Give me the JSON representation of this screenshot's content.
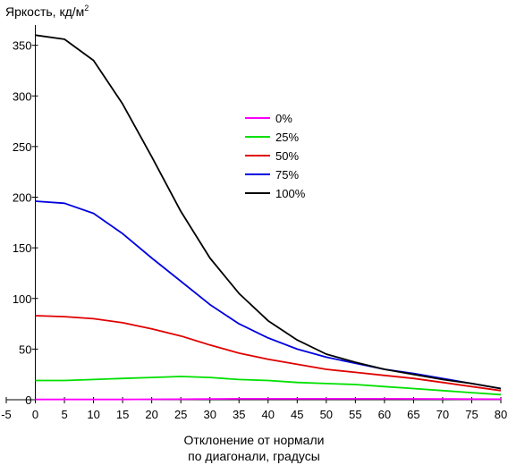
{
  "chart_data": {
    "type": "line",
    "title": "",
    "ylabel": "Яркость, кд/м",
    "ylabel_sup": "2",
    "xlabel_line1": "Отклонение от нормали",
    "xlabel_line2": "по диагонали, градусы",
    "xlim": [
      -5,
      80
    ],
    "ylim": [
      0,
      370
    ],
    "xticks": [
      -5,
      0,
      5,
      10,
      15,
      20,
      25,
      30,
      35,
      40,
      45,
      50,
      55,
      60,
      65,
      70,
      75,
      80
    ],
    "yticks": [
      0,
      50,
      100,
      150,
      200,
      250,
      300,
      350
    ],
    "grid": false,
    "legend_position": "center-right",
    "x": [
      0,
      5,
      10,
      15,
      20,
      25,
      30,
      35,
      40,
      45,
      50,
      55,
      60,
      65,
      70,
      75,
      80
    ],
    "series": [
      {
        "name": "0%",
        "color": "#ff00ff",
        "values": [
          0.3,
          0.3,
          0.3,
          0.3,
          0.4,
          0.5,
          0.8,
          1,
          1,
          1,
          1,
          1,
          1,
          0.9,
          0.8,
          0.6,
          0.5
        ]
      },
      {
        "name": "25%",
        "color": "#00e000",
        "values": [
          19,
          19,
          20,
          21,
          22,
          23,
          22,
          20,
          19,
          17,
          16,
          15,
          13,
          11,
          9,
          7,
          5
        ]
      },
      {
        "name": "50%",
        "color": "#e00000",
        "values": [
          83,
          82,
          80,
          76,
          70,
          63,
          54,
          46,
          40,
          35,
          30,
          27,
          24,
          21,
          17,
          13,
          9
        ]
      },
      {
        "name": "75%",
        "color": "#0000e0",
        "values": [
          196,
          194,
          184,
          164,
          140,
          117,
          94,
          75,
          61,
          50,
          42,
          36,
          30,
          26,
          21,
          16,
          11
        ]
      },
      {
        "name": "100%",
        "color": "#000000",
        "values": [
          360,
          356,
          335,
          292,
          240,
          186,
          140,
          105,
          78,
          59,
          45,
          37,
          30,
          25,
          20,
          16,
          11
        ]
      }
    ]
  }
}
